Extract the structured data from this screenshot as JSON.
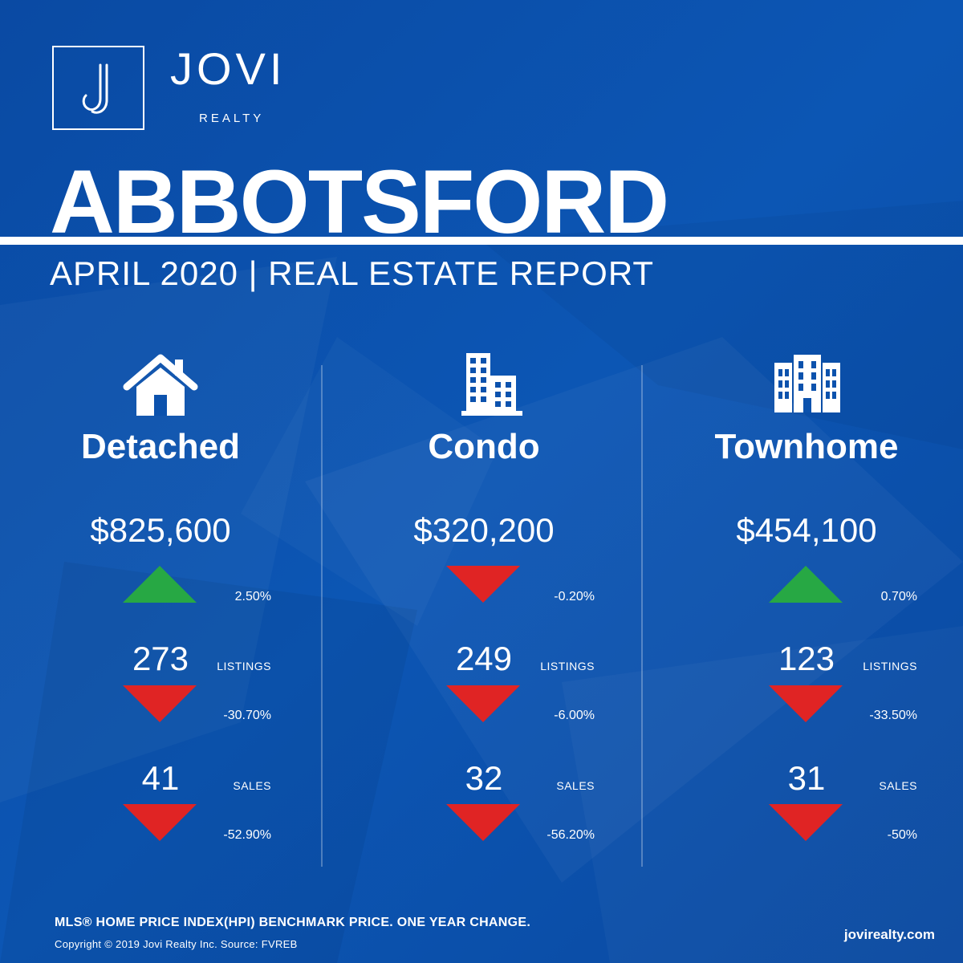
{
  "brand": {
    "name": "JOVI",
    "sub": "REALTY",
    "monogram": "J"
  },
  "title": "ABBOTSFORD",
  "subtitle": "APRIL 2020 | REAL ESTATE REPORT",
  "colors": {
    "background": "#0a4fa8",
    "up": "#27a844",
    "down": "#e02424",
    "text": "#ffffff"
  },
  "property_types": [
    {
      "icon": "house-icon",
      "label": "Detached",
      "price": "$825,600",
      "price_change": "2.50%",
      "price_direction": "up",
      "listings": "273",
      "listings_label": "LISTINGS",
      "listings_change": "-30.70%",
      "listings_direction": "down",
      "sales": "41",
      "sales_label": "SALES",
      "sales_change": "-52.90%",
      "sales_direction": "down"
    },
    {
      "icon": "condo-building-icon",
      "label": "Condo",
      "price": "$320,200",
      "price_change": "-0.20%",
      "price_direction": "down",
      "listings": "249",
      "listings_label": "LISTINGS",
      "listings_change": "-6.00%",
      "listings_direction": "down",
      "sales": "32",
      "sales_label": "SALES",
      "sales_change": "-56.20%",
      "sales_direction": "down"
    },
    {
      "icon": "townhome-building-icon",
      "label": "Townhome",
      "price": "$454,100",
      "price_change": "0.70%",
      "price_direction": "up",
      "listings": "123",
      "listings_label": "LISTINGS",
      "listings_change": "-33.50%",
      "listings_direction": "down",
      "sales": "31",
      "sales_label": "SALES",
      "sales_change": "-50%",
      "sales_direction": "down"
    }
  ],
  "footer": {
    "note": "MLS® HOME PRICE INDEX(HPI) BENCHMARK PRICE. ONE YEAR CHANGE.",
    "copyright": "Copyright © 2019 Jovi Realty Inc. Source: FVREB",
    "website": "jovirealty.com"
  }
}
